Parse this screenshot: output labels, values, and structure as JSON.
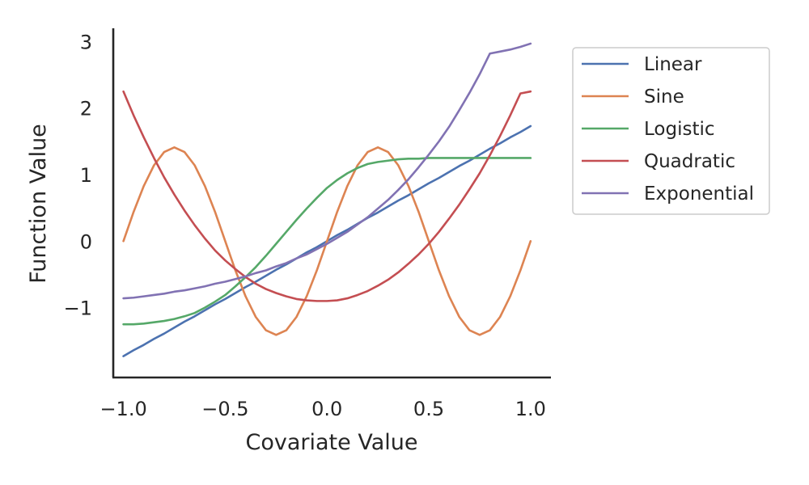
{
  "chart_data": {
    "type": "line",
    "title": "",
    "xlabel": "Covariate Value",
    "ylabel": "Function Value",
    "xlim": [
      -1.05,
      1.1
    ],
    "ylim": [
      -2.05,
      3.2
    ],
    "x_ticks": [
      -1.0,
      -0.5,
      0.0,
      0.5,
      1.0
    ],
    "x_tick_labels": [
      "−1.0",
      "−0.5",
      "0.0",
      "0.5",
      "1.0"
    ],
    "y_ticks": [
      -1,
      0,
      1,
      2,
      3
    ],
    "y_tick_labels": [
      "−1",
      "0",
      "1",
      "2",
      "3"
    ],
    "grid": false,
    "legend_position": "outside-right",
    "x": [
      -1.0,
      -0.95,
      -0.9,
      -0.85,
      -0.8,
      -0.75,
      -0.7,
      -0.65,
      -0.6,
      -0.55,
      -0.5,
      -0.45,
      -0.4,
      -0.35,
      -0.3,
      -0.25,
      -0.2,
      -0.15,
      -0.1,
      -0.05,
      0.0,
      0.05,
      0.1,
      0.15,
      0.2,
      0.25,
      0.3,
      0.35,
      0.4,
      0.45,
      0.5,
      0.55,
      0.6,
      0.65,
      0.7,
      0.75,
      0.8,
      0.85,
      0.9,
      0.95,
      1.0
    ],
    "series": [
      {
        "name": "Linear",
        "color": "#4c72b0",
        "values": [
          -1.73,
          -1.64,
          -1.56,
          -1.47,
          -1.39,
          -1.3,
          -1.21,
          -1.13,
          -1.04,
          -0.95,
          -0.87,
          -0.78,
          -0.69,
          -0.61,
          -0.52,
          -0.43,
          -0.35,
          -0.26,
          -0.17,
          -0.09,
          0.0,
          0.09,
          0.17,
          0.26,
          0.35,
          0.43,
          0.52,
          0.61,
          0.69,
          0.78,
          0.87,
          0.95,
          1.04,
          1.13,
          1.21,
          1.3,
          1.39,
          1.47,
          1.56,
          1.64,
          1.73
        ]
      },
      {
        "name": "Sine",
        "color": "#dd8452",
        "values": [
          0.0,
          0.44,
          0.83,
          1.14,
          1.34,
          1.41,
          1.34,
          1.14,
          0.83,
          0.44,
          0.0,
          -0.44,
          -0.83,
          -1.14,
          -1.34,
          -1.41,
          -1.34,
          -1.14,
          -0.83,
          -0.44,
          0.0,
          0.44,
          0.83,
          1.14,
          1.34,
          1.41,
          1.34,
          1.14,
          0.83,
          0.44,
          0.0,
          -0.44,
          -0.83,
          -1.14,
          -1.34,
          -1.41,
          -1.34,
          -1.14,
          -0.83,
          -0.44,
          0.0
        ]
      },
      {
        "name": "Logistic",
        "color": "#55a868",
        "values": [
          -1.25,
          -1.25,
          -1.24,
          -1.22,
          -1.2,
          -1.17,
          -1.13,
          -1.08,
          -1.0,
          -0.91,
          -0.81,
          -0.68,
          -0.54,
          -0.39,
          -0.22,
          -0.04,
          0.14,
          0.32,
          0.49,
          0.65,
          0.8,
          0.92,
          1.02,
          1.1,
          1.16,
          1.19,
          1.21,
          1.23,
          1.24,
          1.24,
          1.25,
          1.25,
          1.25,
          1.25,
          1.25,
          1.25,
          1.25,
          1.25,
          1.25,
          1.25,
          1.25
        ]
      },
      {
        "name": "Quadratic",
        "color": "#c44e52",
        "values": [
          2.25,
          1.89,
          1.56,
          1.25,
          0.96,
          0.7,
          0.46,
          0.24,
          0.04,
          -0.14,
          -0.29,
          -0.42,
          -0.54,
          -0.64,
          -0.72,
          -0.78,
          -0.83,
          -0.87,
          -0.89,
          -0.9,
          -0.9,
          -0.89,
          -0.86,
          -0.81,
          -0.75,
          -0.67,
          -0.58,
          -0.47,
          -0.34,
          -0.2,
          -0.04,
          0.14,
          0.34,
          0.55,
          0.78,
          1.02,
          1.29,
          1.58,
          1.89,
          2.22,
          2.25
        ]
      },
      {
        "name": "Exponential",
        "color": "#8172b3",
        "values": [
          -0.86,
          -0.85,
          -0.83,
          -0.81,
          -0.79,
          -0.76,
          -0.74,
          -0.71,
          -0.68,
          -0.64,
          -0.61,
          -0.57,
          -0.53,
          -0.48,
          -0.44,
          -0.38,
          -0.33,
          -0.26,
          -0.2,
          -0.12,
          -0.04,
          0.05,
          0.14,
          0.25,
          0.36,
          0.49,
          0.62,
          0.77,
          0.93,
          1.11,
          1.3,
          1.5,
          1.72,
          1.97,
          2.23,
          2.51,
          2.82,
          2.85,
          2.88,
          2.92,
          2.97
        ]
      }
    ]
  }
}
